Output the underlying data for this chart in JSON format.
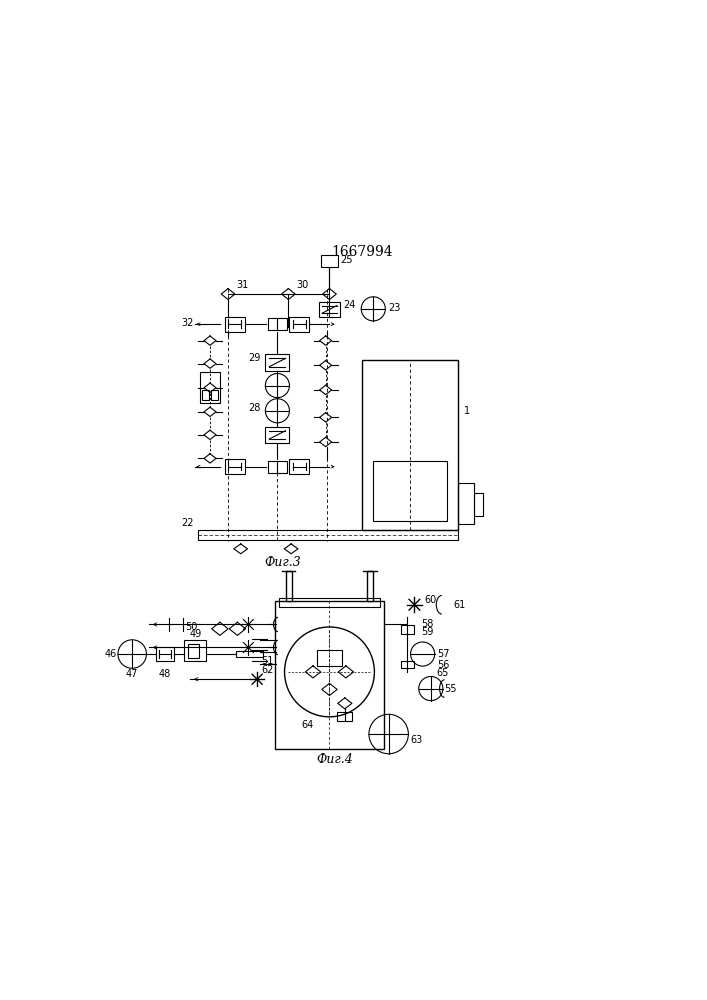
{
  "title": "1667994",
  "fig3_label": "Фиг.3",
  "fig4_label": "Фиг.4",
  "bg_color": "#ffffff",
  "line_color": "#000000"
}
